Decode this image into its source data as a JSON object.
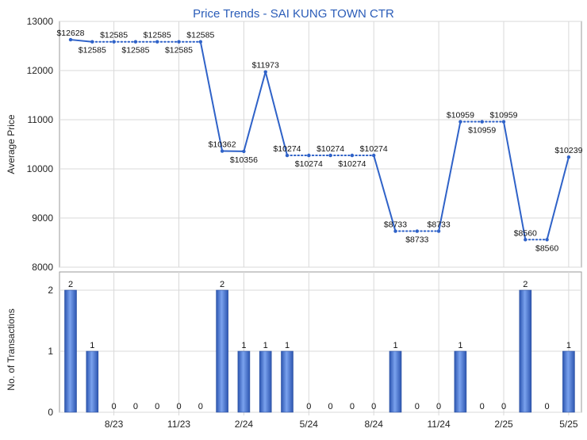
{
  "chart_data": [
    {
      "type": "line",
      "title": "Price Trends - SAI KUNG TOWN CTR",
      "ylabel": "Average Price",
      "ylim": [
        8000,
        13000
      ],
      "yticks": [
        8000,
        9000,
        10000,
        11000,
        12000,
        13000
      ],
      "grid": true,
      "color": "#2f62c8",
      "values": [
        12628,
        12585,
        12585,
        12585,
        12585,
        12585,
        12585,
        10362,
        10356,
        11973,
        10274,
        10274,
        10274,
        10274,
        10274,
        8733,
        8733,
        8733,
        10959,
        10959,
        10959,
        8560,
        8560,
        10239
      ],
      "price_labels": [
        "$12628",
        "$12585",
        "$12585",
        "$12585",
        "$12585",
        "$12585",
        "$12585",
        "$10362",
        "$10356",
        "$11973",
        "$10274",
        "$10274",
        "$10274",
        "$10274",
        "$10274",
        "$8733",
        "$8733",
        "$8733",
        "$10959",
        "$10959",
        "$10959",
        "$8560",
        "$8560",
        "$10239"
      ],
      "dotted_segments": [
        1,
        2,
        3,
        4,
        5,
        10,
        11,
        12,
        13,
        15,
        16,
        18,
        19,
        21
      ]
    },
    {
      "type": "bar",
      "ylabel": "No. of Transactions",
      "ylim": [
        0,
        2
      ],
      "yticks": [
        0,
        1,
        2
      ],
      "grid": true,
      "color": "#3a6fd0",
      "values": [
        2,
        1,
        0,
        0,
        0,
        0,
        0,
        2,
        1,
        1,
        1,
        0,
        0,
        0,
        0,
        1,
        0,
        0,
        1,
        0,
        0,
        2,
        0,
        1
      ],
      "xtick_labels": [
        "8/23",
        "11/23",
        "2/24",
        "5/24",
        "8/24",
        "11/24",
        "2/25",
        "5/25"
      ],
      "xtick_positions": [
        2.5,
        5.5,
        8.5,
        11.5,
        14.5,
        17.5,
        20.5,
        23.5
      ]
    }
  ]
}
